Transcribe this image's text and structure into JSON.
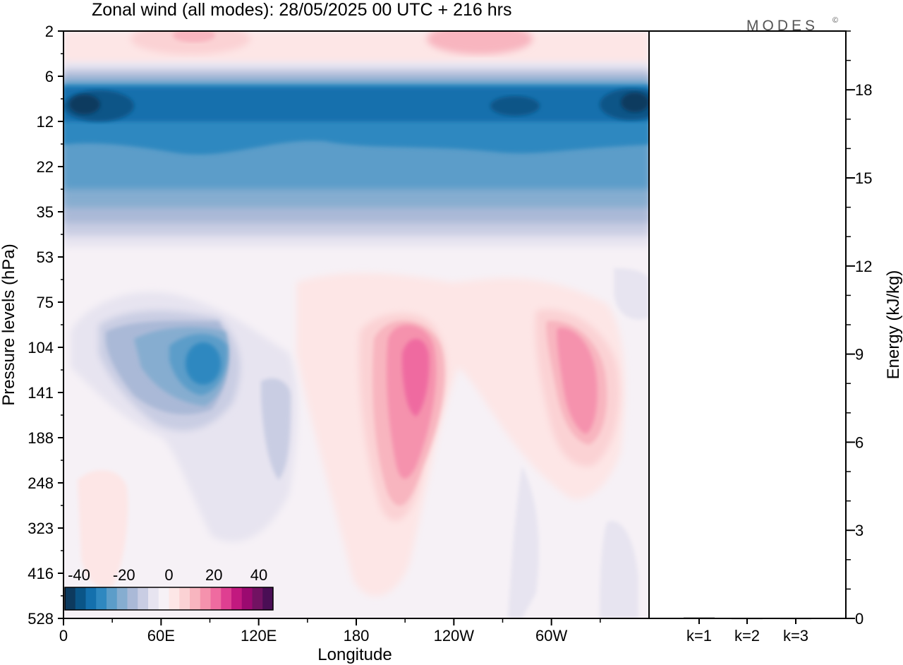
{
  "title": "Zonal wind (all modes):  28/05/2025  00 UTC  + 216 hrs",
  "brand": "MODES",
  "brand_mark": "©",
  "chart_data": [
    {
      "type": "heatmap",
      "title": "Zonal wind (all modes):  28/05/2025  00 UTC  + 216 hrs",
      "xlabel": "Longitude",
      "ylabel": "Pressure levels (hPa)",
      "x_ticks": [
        "0",
        "60E",
        "120E",
        "180",
        "120W",
        "60W"
      ],
      "y_ticks": [
        "2",
        "6",
        "12",
        "22",
        "35",
        "53",
        "75",
        "104",
        "141",
        "188",
        "248",
        "323",
        "416",
        "528"
      ],
      "colorbar": {
        "tick_labels": [
          "-40",
          "-20",
          "0",
          "20",
          "40"
        ],
        "colors": [
          "#0d3a5e",
          "#0a5587",
          "#1470ad",
          "#2f88c0",
          "#5c9dc9",
          "#86add0",
          "#aab9d7",
          "#c9cde3",
          "#e7e4f0",
          "#f6f1f6",
          "#fde6e6",
          "#fbd2d4",
          "#f8b5bf",
          "#f592ad",
          "#ef6ba0",
          "#df3f91",
          "#c2197f",
          "#9b0a70",
          "#721262",
          "#4a0e55"
        ]
      },
      "regions": [
        {
          "level": -4,
          "lon_range": [
            0,
            355
          ],
          "p_range": [
            9,
            12
          ],
          "desc": "core easterlies"
        },
        {
          "level": -3,
          "lon_range": [
            0,
            355
          ],
          "p_range": [
            7,
            17
          ],
          "desc": "easterly jet"
        },
        {
          "level": -2,
          "lon_range": [
            0,
            355
          ],
          "p_range": [
            6,
            30
          ],
          "desc": "stratospheric easterlies"
        },
        {
          "level": -1,
          "lon_range": [
            55,
            100
          ],
          "p_range": [
            110,
            160
          ],
          "desc": "easterly core"
        },
        {
          "level": 2,
          "lon_range": [
            195,
            215
          ],
          "p_range": [
            105,
            200
          ],
          "desc": "westerly jet"
        },
        {
          "level": 2,
          "lon_range": [
            295,
            315
          ],
          "p_range": [
            105,
            185
          ],
          "desc": "westerly jet"
        }
      ]
    },
    {
      "type": "bar",
      "categories": [
        "k=1",
        "k=2",
        "k=3"
      ],
      "values": [
        0.03,
        0.01,
        0.01
      ],
      "ylabel": "Energy (kJ/kg)",
      "ylim": [
        0,
        20
      ],
      "y_ticks": [
        "0",
        "3",
        "6",
        "9",
        "12",
        "15",
        "18"
      ]
    }
  ]
}
